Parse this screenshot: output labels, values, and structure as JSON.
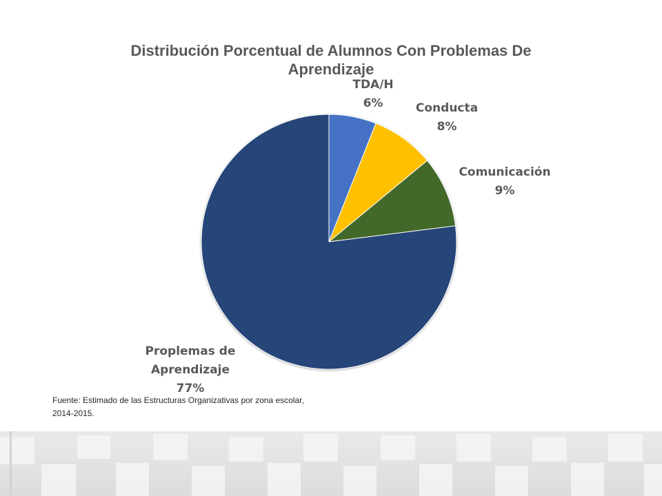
{
  "chart_data": {
    "type": "pie",
    "title": "Distribución Porcentual de Alumnos Con Problemas De Aprendizaje",
    "start_angle_deg": 0,
    "direction": "clockwise",
    "slices": [
      {
        "name": "TDA/H",
        "value": 6,
        "label": "6%",
        "color": "#4472C4"
      },
      {
        "name": "Conducta",
        "value": 8,
        "label": "8%",
        "color": "#FFC000"
      },
      {
        "name": "Comunicación",
        "value": 9,
        "label": "9%",
        "color": "#43682B"
      },
      {
        "name": "Proplemas de Aprendizaje",
        "value": 77,
        "label": "77%",
        "color": "#264478"
      }
    ]
  },
  "labels": {
    "tdah": {
      "name": "TDA/H",
      "pct": "6%"
    },
    "conducta": {
      "name": "Conducta",
      "pct": "8%"
    },
    "comunicacion": {
      "name": "Comunicación",
      "pct": "9%"
    },
    "aprendizaje": {
      "name_line1": "Proplemas de",
      "name_line2": "Aprendizaje",
      "pct": "77%"
    }
  },
  "source_note": "Fuente: Estimado de las Estructuras Organizativas por zona escolar, 2014-2015."
}
